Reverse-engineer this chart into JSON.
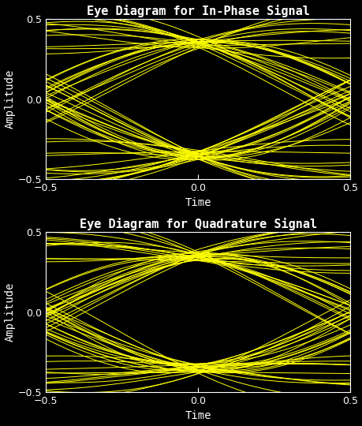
{
  "title1": "Eye Diagram for In-Phase Signal",
  "title2": "Eye Diagram for Quadrature Signal",
  "xlabel": "Time",
  "ylabel": "Amplitude",
  "xlim": [
    -0.5,
    0.5
  ],
  "ylim": [
    -0.5,
    0.5
  ],
  "yticks": [
    -0.5,
    0,
    0.5
  ],
  "xticks": [
    -0.5,
    0,
    0.5
  ],
  "bg_color": "#000000",
  "line_color": "#ffff00",
  "line_width": 0.7,
  "n_traces": 60,
  "n_points": 300,
  "seed": 7,
  "title_fontsize": 11,
  "label_fontsize": 10,
  "tick_fontsize": 9,
  "figwidth": 4.6,
  "figheight": 5.4,
  "dpi": 100,
  "symbols": [
    -0.35,
    0.35
  ],
  "amplitude_noise": 0.03,
  "timing_noise": 0.02
}
